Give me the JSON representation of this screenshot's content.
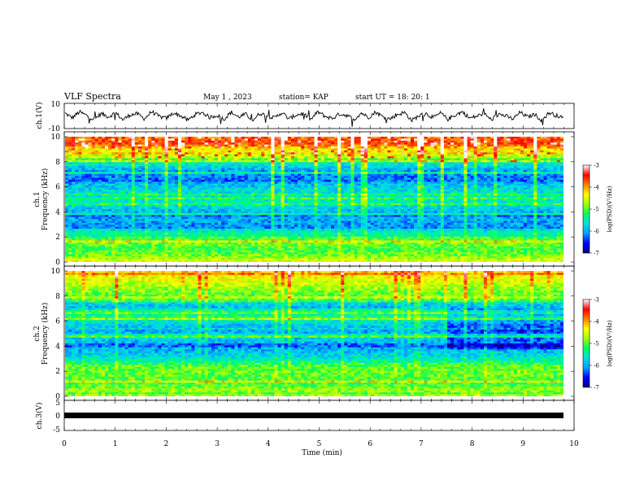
{
  "header": {
    "title": "VLF Spectra",
    "date": "May 1 , 2023",
    "station": "station= KAP",
    "start": "start UT = 18: 20: 1"
  },
  "chart_data": [
    {
      "type": "line",
      "panel": "ch1-waveform",
      "ylabel": "ch.1(V)",
      "ylim": [
        -10,
        10
      ],
      "yticks": [
        "10",
        "-10"
      ],
      "xlim": [
        0,
        10
      ],
      "series": [
        {
          "color": "#000000",
          "values": [
            2.1,
            -1.5,
            3.2,
            0.4,
            -2.8,
            1.9,
            -0.7,
            2.6,
            -3.1,
            0.9,
            1.7,
            -2.2,
            3.5,
            -0.4,
            -1.9,
            2.4,
            0.2,
            -3.4,
            1.1,
            2.9,
            -1.2,
            0.6,
            -2.6,
            3.0,
            -0.9,
            1.4,
            -3.3,
            2.2,
            0.1,
            -1.6,
            2.8,
            -2.4,
            0.8,
            1.9,
            -3.0,
            3.3,
            -0.3,
            -2.0,
            1.6,
            0.5,
            -2.9,
            2.5,
            -1.1,
            3.1,
            -0.6,
            -2.3,
            1.2,
            2.7,
            -3.6,
            0.3,
            1.8,
            -1.4,
            2.3,
            -2.7,
            0.7,
            3.4,
            -1.8,
            -0.2,
            2.0,
            -3.2,
            1.5,
            0.0,
            -2.5,
            2.9,
            -0.8,
            1.3,
            -3.5,
            2.6,
            0.4,
            -1.7
          ]
        }
      ]
    },
    {
      "type": "heatmap",
      "panel": "ch1-spectrogram",
      "ylabel": "ch.1",
      "ylabel2": "Frequency (kHz)",
      "ylim": [
        0,
        10
      ],
      "yticks": [
        "0",
        "2",
        "4",
        "6",
        "8",
        "10"
      ],
      "xlim": [
        0,
        10
      ],
      "colorbar": {
        "label": "log(PSD)(V²/Hz)",
        "range": [
          -7,
          -3
        ],
        "ticks": [
          "-3",
          "-4",
          "-5",
          "-6",
          "-7"
        ]
      },
      "freq_profile_log_psd": [
        -3.8,
        -3.6,
        -4.3,
        -4.6,
        -5.4,
        -5.8,
        -6.1,
        -6.2,
        -5.9,
        -5.7,
        -5.6,
        -5.5,
        -5.8,
        -6.0,
        -6.0,
        -6.1,
        -5.5,
        -5.1,
        -4.9,
        -5.1,
        -4.9,
        -4.5
      ]
    },
    {
      "type": "heatmap",
      "panel": "ch2-spectrogram",
      "ylabel": "ch.2",
      "ylabel2": "Frequency (kHz)",
      "ylim": [
        0,
        10
      ],
      "yticks": [
        "0",
        "2",
        "4",
        "6",
        "8",
        "10"
      ],
      "xlim": [
        0,
        10
      ],
      "colorbar": {
        "label": "log(PSD)(V²/Hz)",
        "range": [
          -7,
          -3
        ],
        "ticks": [
          "-3",
          "-4",
          "-5",
          "-6",
          "-7"
        ]
      },
      "freq_profile_log_psd": [
        -4.2,
        -4.4,
        -4.6,
        -4.8,
        -5.0,
        -5.7,
        -5.9,
        -5.0,
        -5.4,
        -5.8,
        -6.0,
        -5.8,
        -5.9,
        -6.0,
        -5.8,
        -5.5,
        -5.0,
        -4.9,
        -5.0,
        -5.1,
        -4.8,
        -4.7
      ]
    },
    {
      "type": "line",
      "panel": "ch3-waveform",
      "ylabel": "ch.3(V)",
      "ylim": [
        -5,
        5
      ],
      "yticks": [
        "5",
        "0",
        "-5"
      ],
      "xlim": [
        0,
        10
      ],
      "xlabel": "Time (min)",
      "xticks": [
        "0",
        "1",
        "2",
        "3",
        "4",
        "5",
        "6",
        "7",
        "8",
        "9",
        "10"
      ],
      "series": [
        {
          "color": "#000000",
          "values": [
            0,
            0
          ]
        }
      ]
    }
  ],
  "colors": {
    "ink": "#000000",
    "colormap": [
      "#000080",
      "#0000ff",
      "#00a0ff",
      "#00e0e0",
      "#00ff60",
      "#a0ff00",
      "#ffff00",
      "#ff8000",
      "#ff0000",
      "#ffffff"
    ]
  }
}
